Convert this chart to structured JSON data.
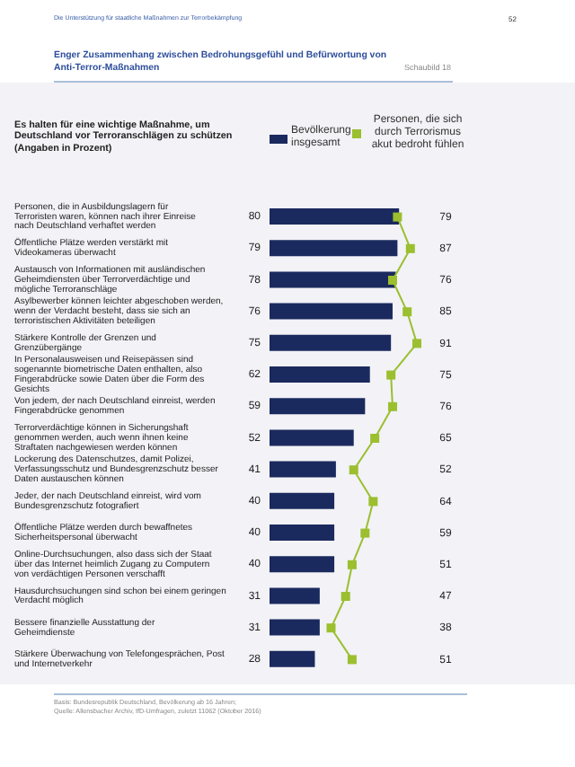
{
  "chart_data": {
    "type": "bar",
    "orientation": "horizontal",
    "title": "Enger Zusammenhang zwischen Bedrohungsgefühl und Befürwortung von Anti-Terror-Maßnahmen",
    "subtitle": "Es halten für eine wichtige Maßnahme, um Deutschland vor Terroranschlägen zu schützen (Angaben in Prozent)",
    "annotations": [
      "Die Unterstützung für staatliche Maßnahmen zur Terrorbekämpfung",
      "52",
      "Schaubild 18",
      "Basis: Bundesrepublik Deutschland, Bevölkerung ab 16 Jahren;",
      "Quelle: Allensbacher Archiv, IfD-Umfragen, zuletzt 11062 (Oktober 2016)"
    ],
    "categories": [
      "Personen, die in Ausbildungslagern für Terroristen waren, können nach ihrer Einreise nach Deutschland verhaftet werden",
      "Öffentliche Plätze werden verstärkt mit Videokameras überwacht",
      "Austausch von Informationen mit ausländischen Geheimdiensten über Terrorverdächtige und mögliche Terroranschläge",
      "Asylbewerber können leichter abgeschoben werden, wenn der Verdacht besteht, dass sie sich an terroristischen Aktivitäten beteiligen",
      "Stärkere Kontrolle der Grenzen und Grenzübergänge",
      "In Personalausweisen und Reisepässen sind sogenannte biometrische Daten enthalten, also Fingerabdrücke sowie Daten über die Form des Gesichts",
      "Von jedem, der nach Deutschland einreist, werden Fingerabdrücke genommen",
      "Terrorverdächtige können in Sicherungshaft genommen werden, auch wenn ihnen keine Straftaten nachgewiesen werden können",
      "Lockerung des Datenschutzes, damit Polizei, Verfassungsschutz und Bundesgrenzschutz besser Daten austauschen können",
      "Jeder, der nach Deutschland einreist, wird vom Bundesgrenzschutz fotografiert",
      "Öffentliche Plätze werden durch bewaffnetes Sicherheitspersonal überwacht",
      "Online-Durchsuchungen, also dass sich der Staat über das Internet heimlich Zugang zu Computern von verdächtigen Personen verschafft",
      "Hausdurchsuchungen sind schon bei einem geringen Verdacht möglich",
      "Bessere finanzielle Ausstattung der Geheimdienste",
      "Stärkere Überwachung von Telefongesprächen, Post und Internetverkehr"
    ],
    "series": [
      {
        "name": "Bevölkerung insgesamt",
        "color": "#1b2a5e",
        "values": [
          80,
          79,
          78,
          76,
          75,
          62,
          59,
          52,
          41,
          40,
          40,
          40,
          31,
          31,
          28
        ]
      },
      {
        "name": "Personen, die sich durch Terrorismus akut bedroht fühlen",
        "type": "line",
        "color": "#9bbf2e",
        "marker": "square",
        "line_style": "solid",
        "values": [
          79,
          87,
          76,
          85,
          91,
          75,
          76,
          65,
          52,
          64,
          59,
          51,
          47,
          38,
          51
        ]
      }
    ],
    "data_labels": true,
    "legend": "top right"
  }
}
